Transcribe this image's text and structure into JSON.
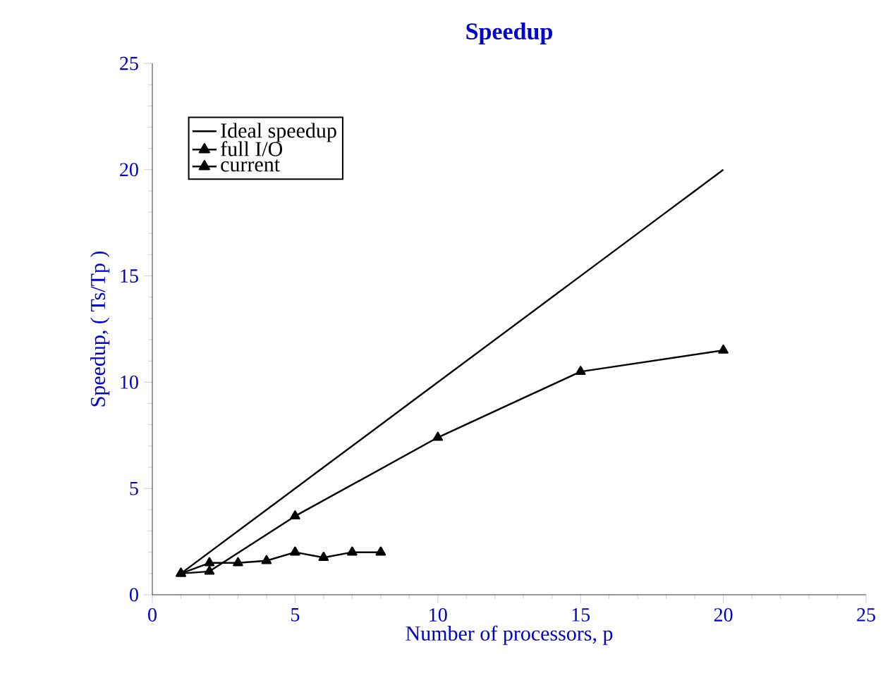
{
  "chart_data": {
    "type": "line",
    "title": "Speedup",
    "xlabel": "Number of processors,  p",
    "ylabel": "Speedup,  ( Ts/Tp )",
    "xlim": [
      0,
      25
    ],
    "ylim": [
      0,
      25
    ],
    "xticks": [
      0,
      5,
      10,
      15,
      20,
      25
    ],
    "yticks": [
      0,
      5,
      10,
      15,
      20,
      25
    ],
    "grid": false,
    "legend": "top left",
    "series": [
      {
        "name": "Ideal speedup",
        "color": "#000000",
        "marker": "none",
        "x": [
          1,
          2,
          3,
          4,
          5,
          6,
          7,
          8,
          9,
          10,
          11,
          12,
          13,
          14,
          15,
          16,
          17,
          18,
          19,
          20
        ],
        "values": [
          1,
          2,
          3,
          4,
          5,
          6,
          7,
          8,
          9,
          10,
          11,
          12,
          13,
          14,
          15,
          16,
          17,
          18,
          19,
          20
        ]
      },
      {
        "name": "full I/O",
        "color": "#000000",
        "marker": "triangle",
        "x": [
          1,
          2,
          3,
          4,
          5,
          6,
          7,
          8
        ],
        "values": [
          1,
          1.5,
          1.5,
          1.6,
          2.0,
          1.75,
          2.0,
          2.0
        ]
      },
      {
        "name": "current",
        "color": "#000000",
        "marker": "triangle",
        "x": [
          1,
          2,
          5,
          10,
          15,
          20
        ],
        "values": [
          1,
          1.1,
          3.7,
          7.4,
          10.5,
          11.5
        ]
      }
    ]
  }
}
